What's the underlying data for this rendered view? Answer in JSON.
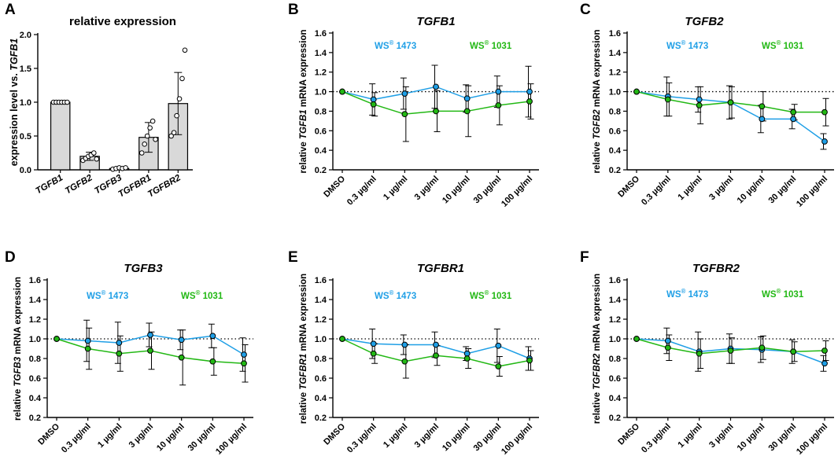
{
  "colors": {
    "ws1473": "#1f9fe6",
    "ws1031": "#22b814",
    "bar": "#d9d9d9",
    "axis": "#000000"
  },
  "legend": {
    "ws1473_prefix": "WS",
    "ws1473_mark": "®",
    "ws1473_suffix": " 1473",
    "ws1031_prefix": "WS",
    "ws1031_mark": "®",
    "ws1031_suffix": " 1031"
  },
  "x_categories": [
    "DMSO",
    "0.3 µg/ml",
    "1 µg/ml",
    "3 µg/ml",
    "10 µg/ml",
    "30 µg/ml",
    "100 µg/ml"
  ],
  "chart_data": [
    {
      "panel": "A",
      "type": "bar",
      "title": "relative expression",
      "ylabel_prefix": "expression level vs. ",
      "ylabel_gene": "TGFB1",
      "categories": [
        "TGFB1",
        "TGFB2",
        "TGFB3",
        "TGFBR1",
        "TGFBR2"
      ],
      "values": [
        1.0,
        0.2,
        0.02,
        0.48,
        0.98
      ],
      "errors": [
        0.0,
        0.06,
        0.01,
        0.22,
        0.46
      ],
      "points": [
        [
          1,
          1,
          1,
          1,
          1,
          1
        ],
        [
          0.14,
          0.17,
          0.2,
          0.22,
          0.25,
          0.16
        ],
        [
          0.01,
          0.02,
          0.03,
          0.02,
          0.03
        ],
        [
          0.25,
          0.38,
          0.5,
          0.62,
          0.72,
          0.45
        ],
        [
          0.5,
          0.55,
          0.8,
          1.05,
          1.35,
          1.77
        ]
      ],
      "ylim": [
        0,
        2.0
      ],
      "yticks": [
        0.0,
        0.5,
        1.0,
        1.5,
        2.0
      ]
    },
    {
      "panel": "B",
      "type": "line",
      "title": "TGFB1",
      "ylabel_prefix": "relative ",
      "ylabel_gene": "TGFB1",
      "ylabel_suffix": " mRNA expression",
      "ylim": [
        0.2,
        1.6
      ],
      "yticks": [
        0.2,
        0.4,
        0.6,
        0.8,
        1.0,
        1.2,
        1.4,
        1.6
      ],
      "reference": 1.0,
      "series": [
        {
          "name": "WS® 1473",
          "values": [
            1.0,
            0.92,
            0.98,
            1.05,
            0.93,
            1.0,
            1.0
          ],
          "errors": [
            0,
            0.16,
            0.16,
            0.22,
            0.14,
            0.16,
            0.26
          ]
        },
        {
          "name": "WS® 1031",
          "values": [
            1.0,
            0.87,
            0.77,
            0.8,
            0.8,
            0.86,
            0.9
          ],
          "errors": [
            0,
            0.12,
            0.28,
            0.21,
            0.26,
            0.2,
            0.18
          ]
        }
      ]
    },
    {
      "panel": "C",
      "type": "line",
      "title": "TGFB2",
      "ylabel_prefix": "relative ",
      "ylabel_gene": "TGFB2",
      "ylabel_suffix": " mRNA expression",
      "ylim": [
        0.2,
        1.6
      ],
      "yticks": [
        0.2,
        0.4,
        0.6,
        0.8,
        1.0,
        1.2,
        1.4,
        1.6
      ],
      "reference": 1.0,
      "series": [
        {
          "name": "WS® 1473",
          "values": [
            1.0,
            0.95,
            0.92,
            0.89,
            0.72,
            0.72,
            0.49
          ],
          "errors": [
            0,
            0.2,
            0.13,
            0.17,
            0.14,
            0.1,
            0.08
          ]
        },
        {
          "name": "WS® 1031",
          "values": [
            1.0,
            0.92,
            0.86,
            0.89,
            0.85,
            0.79,
            0.79
          ],
          "errors": [
            0,
            0.17,
            0.19,
            0.16,
            0.15,
            0.08,
            0.14
          ]
        }
      ]
    },
    {
      "panel": "D",
      "type": "line",
      "title": "TGFB3",
      "ylabel_prefix": "relative ",
      "ylabel_gene": "TGFB3",
      "ylabel_suffix": " mRNA expression",
      "ylim": [
        0.2,
        1.6
      ],
      "yticks": [
        0.2,
        0.4,
        0.6,
        0.8,
        1.0,
        1.2,
        1.4,
        1.6
      ],
      "reference": 1.0,
      "series": [
        {
          "name": "WS® 1473",
          "values": [
            1.0,
            0.98,
            0.96,
            1.04,
            0.99,
            1.03,
            0.84
          ],
          "errors": [
            0,
            0.21,
            0.21,
            0.12,
            0.1,
            0.12,
            0.17
          ]
        },
        {
          "name": "WS® 1031",
          "values": [
            1.0,
            0.9,
            0.85,
            0.88,
            0.81,
            0.77,
            0.75
          ],
          "errors": [
            0,
            0.21,
            0.18,
            0.19,
            0.28,
            0.14,
            0.19
          ]
        }
      ]
    },
    {
      "panel": "E",
      "type": "line",
      "title": "TGFBR1",
      "ylabel_prefix": "relative ",
      "ylabel_gene": "TGFBR1",
      "ylabel_suffix": " mRNA expression",
      "ylim": [
        0.2,
        1.6
      ],
      "yticks": [
        0.2,
        0.4,
        0.6,
        0.8,
        1.0,
        1.2,
        1.4,
        1.6
      ],
      "reference": 1.0,
      "series": [
        {
          "name": "WS® 1473",
          "values": [
            1.0,
            0.95,
            0.94,
            0.94,
            0.85,
            0.93,
            0.8
          ],
          "errors": [
            0,
            0.15,
            0.1,
            0.13,
            0.07,
            0.17,
            0.12
          ]
        },
        {
          "name": "WS® 1031",
          "values": [
            1.0,
            0.85,
            0.77,
            0.83,
            0.8,
            0.72,
            0.78
          ],
          "errors": [
            0,
            0.1,
            0.17,
            0.1,
            0.1,
            0.1,
            0.1
          ]
        }
      ]
    },
    {
      "panel": "F",
      "type": "line",
      "title": "TGFBR2",
      "ylabel_prefix": "relative ",
      "ylabel_gene": "TGFBR2",
      "ylabel_suffix": " mRNA expression",
      "ylim": [
        0.2,
        1.6
      ],
      "yticks": [
        0.2,
        0.4,
        0.6,
        0.8,
        1.0,
        1.2,
        1.4,
        1.6
      ],
      "reference": 1.0,
      "series": [
        {
          "name": "WS® 1473",
          "values": [
            1.0,
            0.98,
            0.87,
            0.9,
            0.89,
            0.87,
            0.75
          ],
          "errors": [
            0,
            0.13,
            0.2,
            0.15,
            0.13,
            0.12,
            0.08
          ]
        },
        {
          "name": "WS® 1031",
          "values": [
            1.0,
            0.91,
            0.85,
            0.88,
            0.91,
            0.87,
            0.88
          ],
          "errors": [
            0,
            0.13,
            0.15,
            0.13,
            0.12,
            0.1,
            0.1
          ]
        }
      ]
    }
  ]
}
